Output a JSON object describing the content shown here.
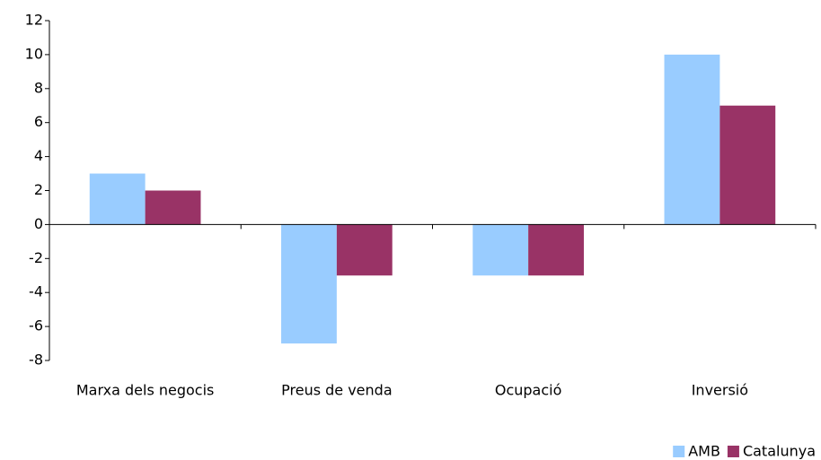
{
  "chart_data": {
    "type": "bar",
    "categories": [
      "Marxa dels negocis",
      "Preus de venda",
      "Ocupació",
      "Inversió"
    ],
    "series": [
      {
        "name": "AMB",
        "color": "#99ccff",
        "values": [
          3,
          -7,
          -3,
          10
        ]
      },
      {
        "name": "Catalunya",
        "color": "#993366",
        "values": [
          2,
          -3,
          -3,
          7
        ]
      }
    ],
    "ylim": [
      -8,
      12
    ],
    "yticks": [
      -8,
      -6,
      -4,
      -2,
      0,
      2,
      4,
      6,
      8,
      10,
      12
    ],
    "grid": false,
    "legend": "bottom-right"
  }
}
